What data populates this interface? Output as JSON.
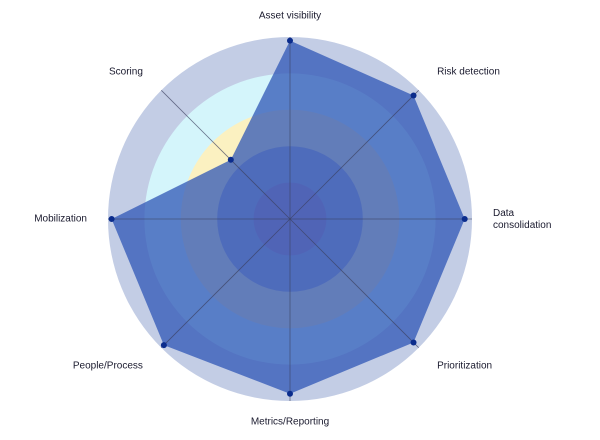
{
  "chart_data": {
    "type": "radar",
    "categories": [
      "Asset visibility",
      "Risk detection",
      "Data consolidation",
      "Prioritization",
      "Metrics/Reporting",
      "People/Process",
      "Mobilization",
      "Scoring"
    ],
    "values": [
      4.9,
      4.8,
      4.8,
      4.8,
      4.8,
      4.9,
      4.9,
      2.3
    ],
    "rlim": [
      0,
      5
    ],
    "rticks": [
      1,
      2,
      3,
      4,
      5
    ],
    "ring_colors": [
      "#b48fb9",
      "#adaecb",
      "#fbf1c1",
      "#d4f5fb",
      "#c3cde5"
    ],
    "color": "#2f55b5",
    "marker_color": "#0b2c8c",
    "grid": true
  }
}
